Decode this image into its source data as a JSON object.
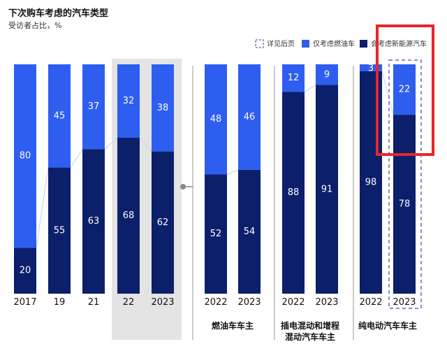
{
  "title": "下次购车考虑的汽车类型",
  "subtitle": "受访者占比，%",
  "colors": {
    "fuel": "#2e5ef0",
    "nev": "#0c1f6b",
    "highlight_bg": "#e4e4e4",
    "red_box": "#e8262a",
    "dash": "#5b6fae"
  },
  "legend": {
    "detail": "详见后页",
    "fuel_only": "仅考虑燃油车",
    "nev": "会考虑新能源汽车"
  },
  "chart_data": {
    "type": "bar",
    "stacked": true,
    "series": [
      {
        "name": "会考虑新能源汽车",
        "key": "nev"
      },
      {
        "name": "仅考虑燃油车",
        "key": "fuel"
      }
    ],
    "groups": [
      {
        "name": "",
        "bars": [
          {
            "x": "2017",
            "nev": 20,
            "fuel": 80
          },
          {
            "x": "19",
            "nev": 55,
            "fuel": 45
          },
          {
            "x": "21",
            "nev": 63,
            "fuel": 37
          },
          {
            "x": "22",
            "nev": 68,
            "fuel": 32
          },
          {
            "x": "2023",
            "nev": 62,
            "fuel": 38
          }
        ]
      },
      {
        "name": "燃油车车主",
        "bars": [
          {
            "x": "2022",
            "nev": 52,
            "fuel": 48
          },
          {
            "x": "2023",
            "nev": 54,
            "fuel": 46
          }
        ]
      },
      {
        "name": "插电混动和增程混动汽车车主",
        "name_lines": [
          "插电混动和增程",
          "混动汽车车主"
        ],
        "bars": [
          {
            "x": "2022",
            "nev": 88,
            "fuel": 12
          },
          {
            "x": "2023",
            "nev": 91,
            "fuel": 9
          }
        ]
      },
      {
        "name": "纯电动汽车车主",
        "bars": [
          {
            "x": "2022",
            "nev": 98,
            "fuel": 3
          },
          {
            "x": "2023",
            "nev": 78,
            "fuel": 22
          }
        ]
      }
    ],
    "ylim": [
      0,
      100
    ],
    "grid": false,
    "legend_position": "top-right"
  }
}
